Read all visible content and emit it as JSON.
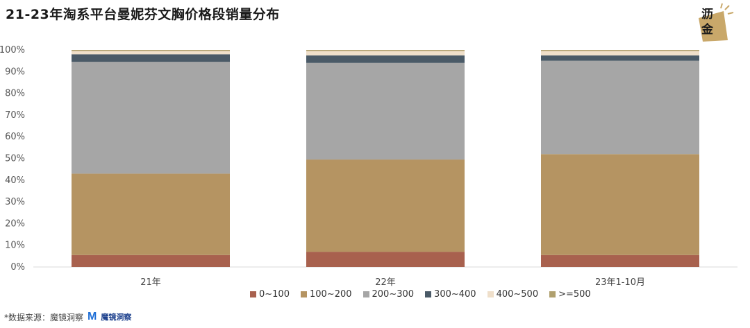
{
  "title": "21-23年淘系平台曼妮芬文胸价格段销量分布",
  "logo": {
    "line1": "沥",
    "line2": "金"
  },
  "source": {
    "label": "*数据来源：魔镜洞察",
    "brand_mark": "M",
    "brand_name": "魔镜洞察"
  },
  "colors": {
    "0~100": "#a8614e",
    "100~200": "#b59462",
    "200~300": "#a6a6a6",
    "300~400": "#4a5a67",
    "400~500": "#efdfca",
    ">=500": "#b0a06e",
    "axis": "#d9d9d9"
  },
  "chart_data": {
    "type": "bar",
    "stacked": true,
    "categories": [
      "21年",
      "22年",
      "23年1-10月"
    ],
    "series": [
      {
        "name": "0~100",
        "values": [
          5.5,
          7.0,
          5.5
        ]
      },
      {
        "name": "100~200",
        "values": [
          37.5,
          42.5,
          46.5
        ]
      },
      {
        "name": "200~300",
        "values": [
          51.5,
          44.5,
          43.0
        ]
      },
      {
        "name": "300~400",
        "values": [
          3.5,
          3.5,
          2.5
        ]
      },
      {
        "name": "400~500",
        "values": [
          1.5,
          2.0,
          2.0
        ]
      },
      {
        "name": ">=500",
        "values": [
          0.5,
          0.5,
          0.5
        ]
      }
    ],
    "yticks": [
      "0%",
      "10%",
      "20%",
      "30%",
      "40%",
      "50%",
      "60%",
      "70%",
      "80%",
      "90%",
      "100%"
    ],
    "ylim": [
      0,
      100
    ],
    "legend_position": "bottom",
    "grid": false
  }
}
